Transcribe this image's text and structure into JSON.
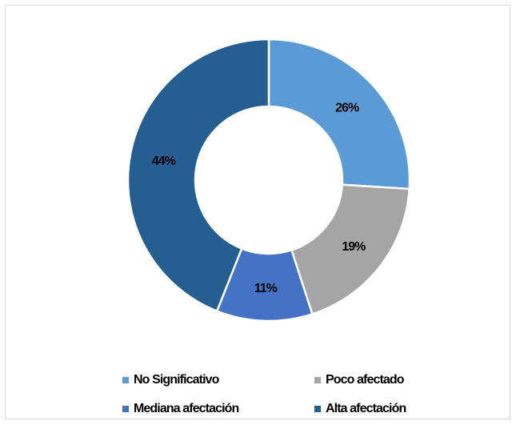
{
  "chart_data": {
    "type": "pie",
    "variant": "donut",
    "title": "",
    "categories": [
      "No Significativo",
      "Poco afectado",
      "Mediana afectación",
      "Alta afectación"
    ],
    "values": [
      26,
      19,
      11,
      44
    ],
    "labels": [
      "26%",
      "19%",
      "11%",
      "44%"
    ],
    "colors": [
      "#5b9bd5",
      "#a5a5a5",
      "#4472c4",
      "#255e91"
    ],
    "legend_position": "bottom"
  }
}
